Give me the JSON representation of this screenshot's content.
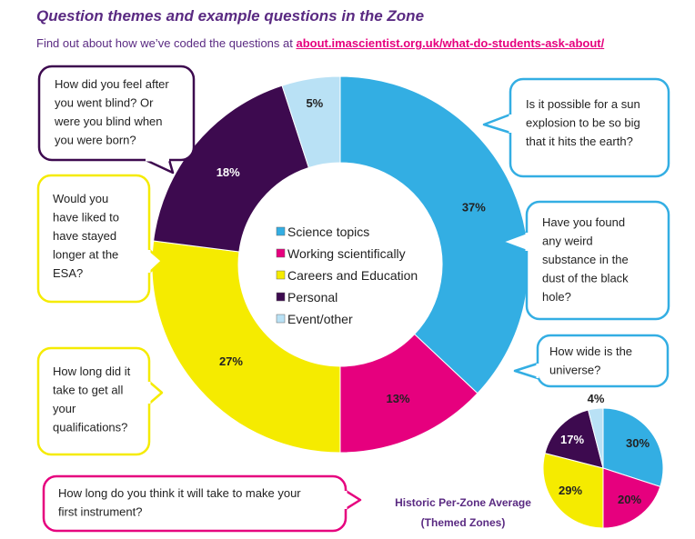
{
  "header": {
    "title": "Question themes and example questions in the Zone",
    "subtitle_prefix": "Find out about how we’ve coded the questions at ",
    "subtitle_link": "about.imascientist.org.uk/what-do-students-ask-about/"
  },
  "colors": {
    "science": "#33aee3",
    "working": "#e6007e",
    "careers": "#f5eb00",
    "personal": "#3d0a4f",
    "event": "#b9e1f5",
    "brand": "#5a2a82"
  },
  "chart_data": [
    {
      "type": "donut",
      "categories": [
        "Science topics",
        "Working scientifically",
        "Careers and Education",
        "Personal",
        "Event/other"
      ],
      "values": [
        37,
        13,
        27,
        18,
        5
      ],
      "labels": [
        "37%",
        "13%",
        "27%",
        "18%",
        "5%"
      ],
      "legend": [
        "Science topics",
        "Working scientifically",
        "Careers and Education",
        "Personal",
        "Event/other"
      ],
      "legend_position": "center"
    },
    {
      "type": "pie",
      "title": "Historic Per-Zone Average (Themed Zones)",
      "categories": [
        "Science topics",
        "Working scientifically",
        "Careers and Education",
        "Personal",
        "Event/other"
      ],
      "values": [
        30,
        20,
        29,
        17,
        4
      ],
      "labels": [
        "30%",
        "20%",
        "29%",
        "17%",
        "4%"
      ]
    }
  ],
  "bubbles": [
    {
      "theme": "personal",
      "lines": [
        "How did you feel after",
        "you went blind? Or",
        "were you blind when",
        "you were born?"
      ]
    },
    {
      "theme": "careers",
      "lines": [
        "Would you",
        "have liked to",
        "have stayed",
        "longer at the",
        "ESA?"
      ]
    },
    {
      "theme": "careers",
      "lines": [
        "How long did it",
        "take to get all",
        "your",
        "qualifications?"
      ]
    },
    {
      "theme": "working",
      "lines": [
        "How long do you think it will take to make your",
        "first instrument?"
      ]
    },
    {
      "theme": "science",
      "lines": [
        "Is it possible for a sun",
        "explosion to be so big",
        "that it hits the earth?"
      ]
    },
    {
      "theme": "science",
      "lines": [
        "Have you found",
        "any weird",
        "substance in the",
        "dust of the black",
        "hole?"
      ]
    },
    {
      "theme": "science",
      "lines": [
        "How wide is the",
        "universe?"
      ]
    }
  ],
  "historic_caption": [
    "Historic Per-Zone Average",
    "(Themed Zones)"
  ]
}
